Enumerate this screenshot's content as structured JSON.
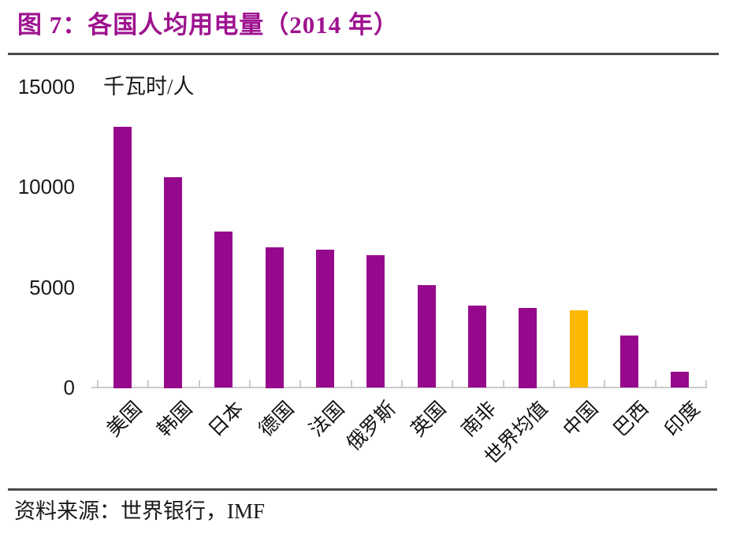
{
  "header": {
    "title": "图 7：各国人均用电量（2014 年）"
  },
  "chart_data": {
    "type": "bar",
    "title": "各国人均用电量（2014 年）",
    "unit_label": "千瓦时/人",
    "categories": [
      "美国",
      "韩国",
      "日本",
      "德国",
      "法国",
      "俄罗斯",
      "英国",
      "南非",
      "世界均值",
      "中国",
      "巴西",
      "印度"
    ],
    "category_slugs": [
      "usa",
      "south-korea",
      "japan",
      "germany",
      "france",
      "russia",
      "uk",
      "south-africa",
      "world-average",
      "china",
      "brazil",
      "india"
    ],
    "values": [
      13000,
      10500,
      7800,
      7000,
      6900,
      6600,
      5100,
      4100,
      4000,
      3850,
      2600,
      800
    ],
    "highlight_category": "中国",
    "yticks": [
      15000,
      10000,
      5000,
      0
    ],
    "ylim": [
      0,
      15000
    ],
    "grid": false,
    "legend_position": "none",
    "xlabel": "",
    "ylabel": "千瓦时/人",
    "colors": {
      "bar": "#97098C",
      "highlight": "#FBB800",
      "title": "#9E128F",
      "axis": "#C9C9C9",
      "rule": "#4A4A4A",
      "text": "#1A1A1A"
    }
  },
  "footer": {
    "source": "资料来源：世界银行，IMF"
  }
}
